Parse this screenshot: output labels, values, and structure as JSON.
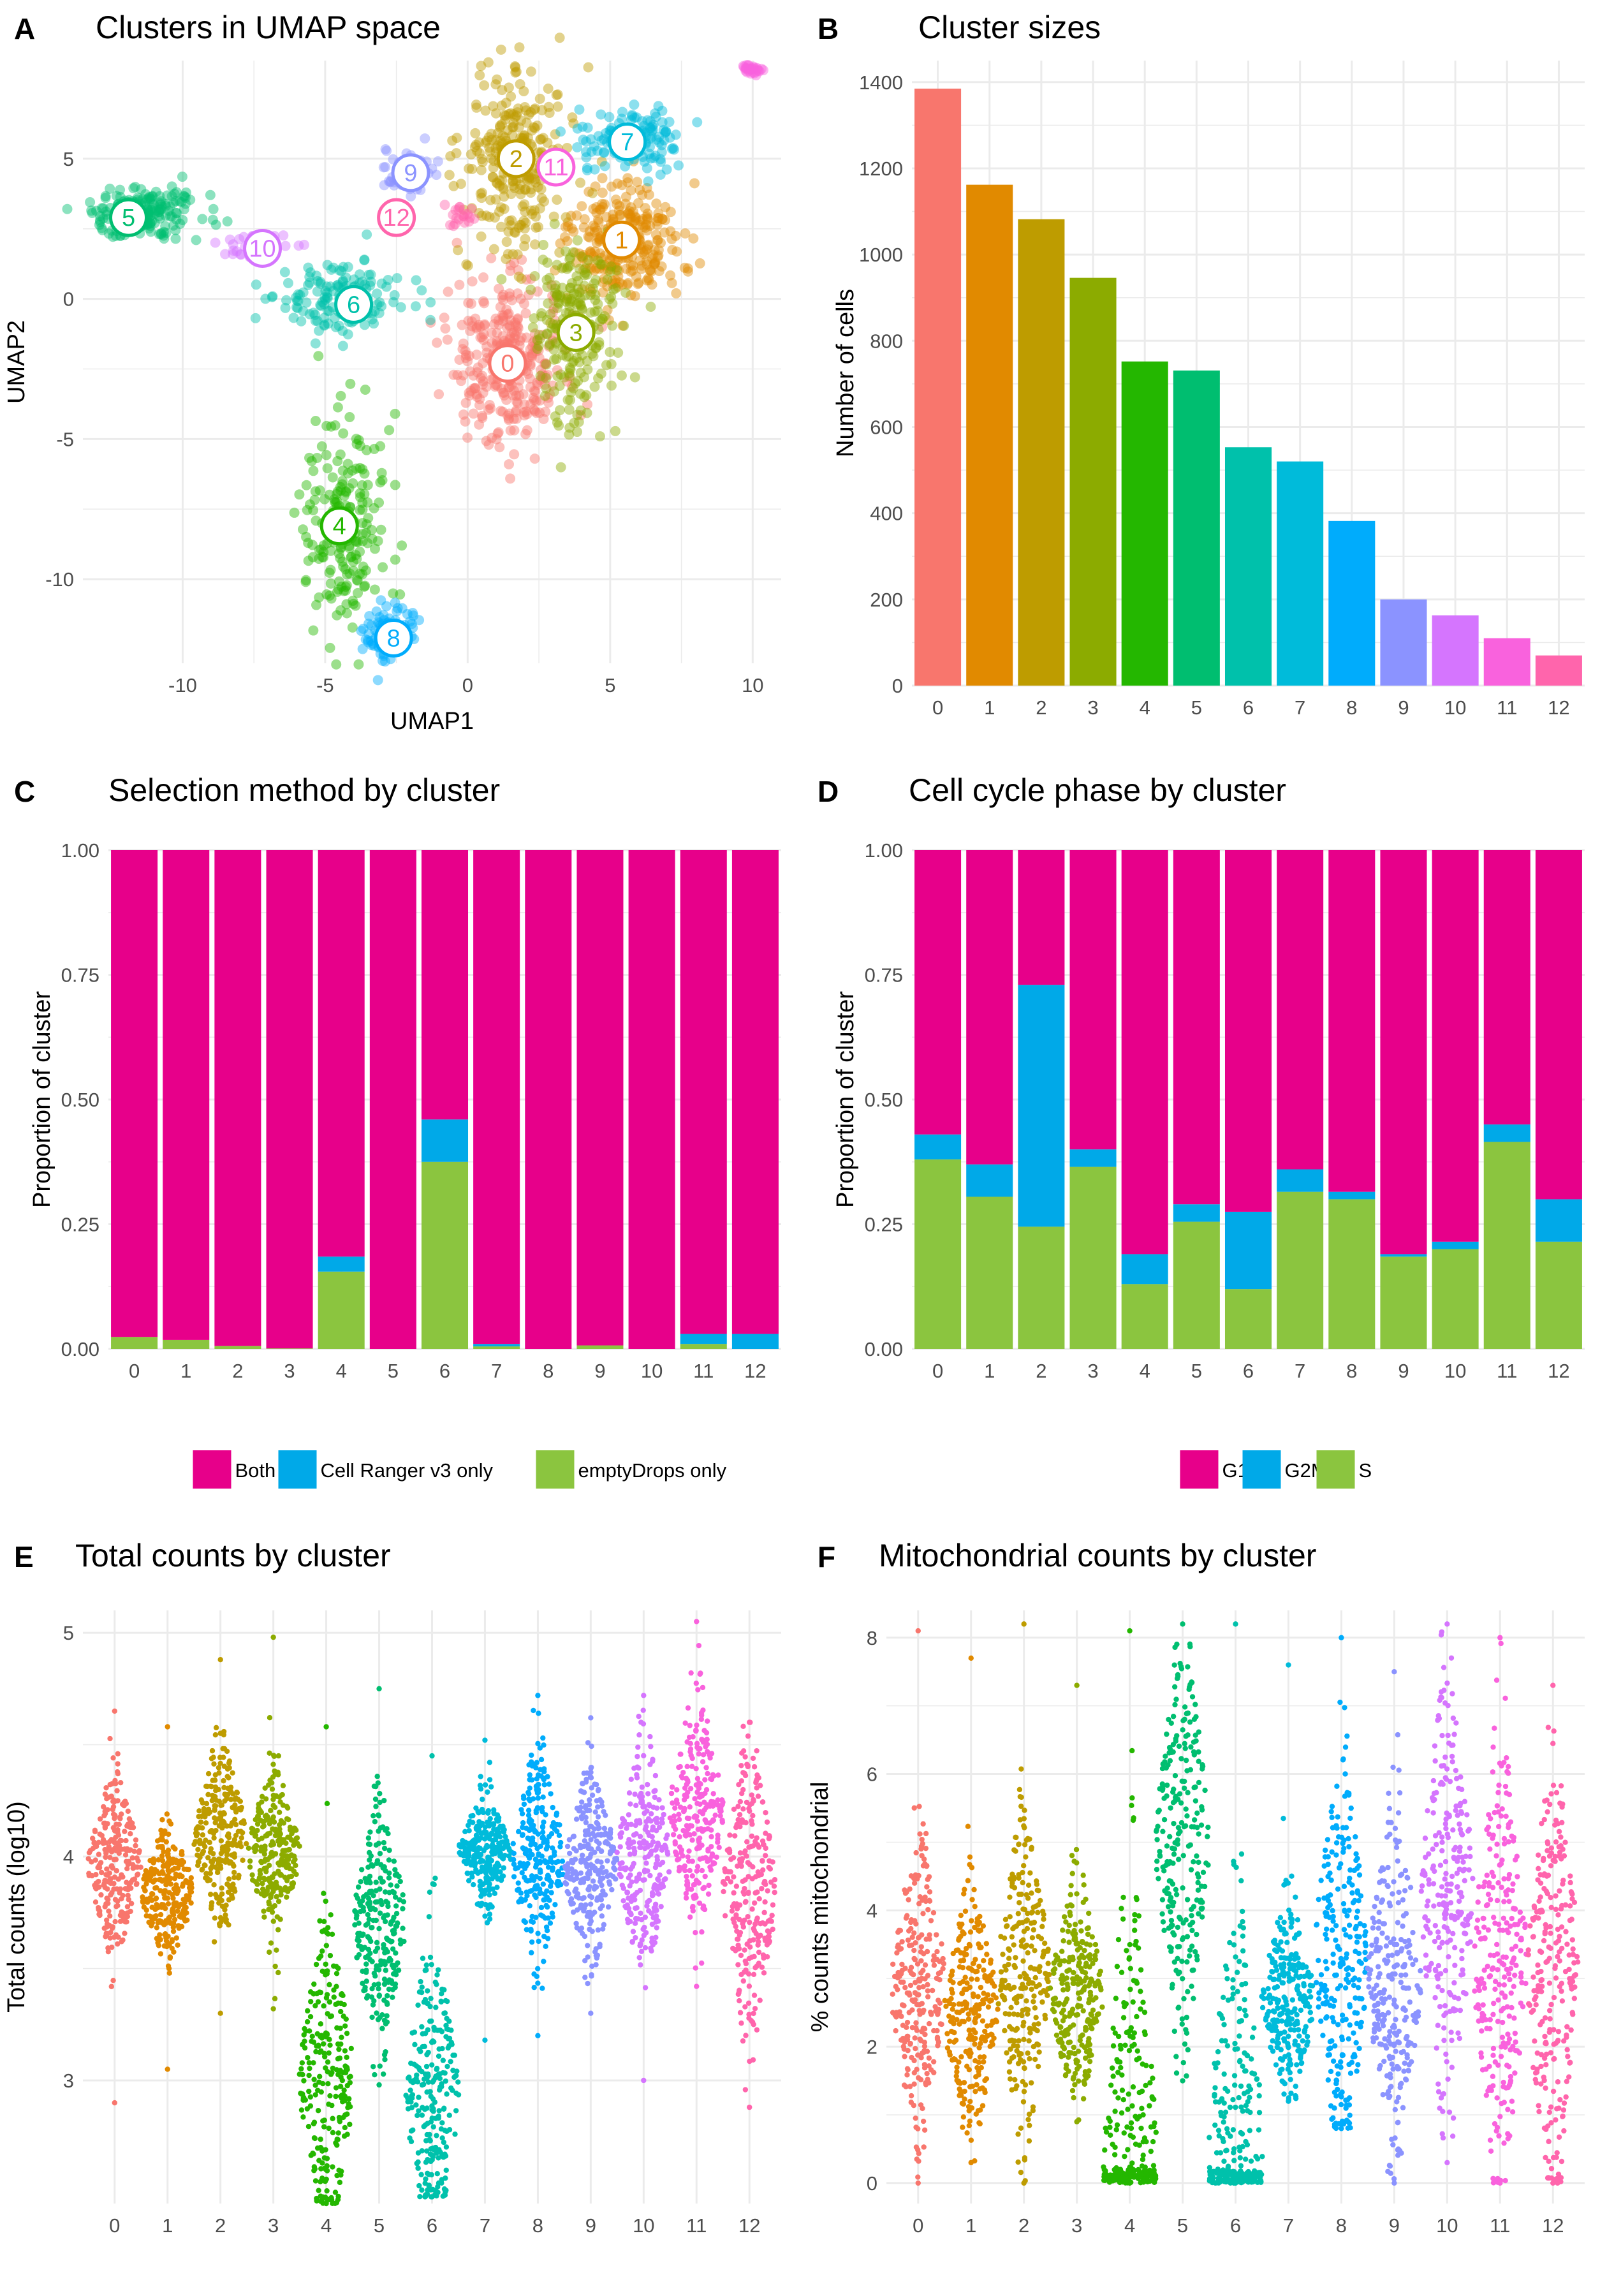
{
  "panels": {
    "A": {
      "label": "A",
      "title": "Clusters in UMAP space"
    },
    "B": {
      "label": "B",
      "title": "Cluster sizes"
    },
    "C": {
      "label": "C",
      "title": "Selection method by cluster"
    },
    "D": {
      "label": "D",
      "title": "Cell cycle phase by cluster"
    },
    "E": {
      "label": "E",
      "title": "Total counts by cluster"
    },
    "F": {
      "label": "F",
      "title": "Mitochondrial counts by cluster"
    }
  },
  "colors": {
    "clusters": [
      "#F8766D",
      "#E18A00",
      "#BE9C00",
      "#8CAB00",
      "#24B700",
      "#00BE70",
      "#00C1AB",
      "#00BBDA",
      "#00ACFC",
      "#8B93FF",
      "#D575FE",
      "#F962DD",
      "#FF65AC"
    ],
    "magenta": "#E7008A",
    "blue": "#00A9E8",
    "green": "#8BC53F",
    "grid": "#EBEBEB",
    "axis_text": "#4D4D4D"
  },
  "chart_data": [
    {
      "panel": "A",
      "type": "scatter",
      "title": "Clusters in UMAP space",
      "xlabel": "UMAP1",
      "ylabel": "UMAP2",
      "xlim": [
        -13.5,
        11
      ],
      "ylim": [
        -13,
        8.5
      ],
      "xticks": [
        -10,
        -5,
        0,
        5,
        10
      ],
      "yticks": [
        -10,
        -5,
        0,
        5
      ],
      "clusters": [
        {
          "id": "0",
          "center": [
            1.4,
            -2.3
          ],
          "spread": [
            1.0,
            1.4
          ],
          "n": 320
        },
        {
          "id": "1",
          "center": [
            5.5,
            2.0
          ],
          "spread": [
            1.0,
            1.1
          ],
          "n": 280
        },
        {
          "id": "2",
          "center": [
            1.7,
            5.0
          ],
          "spread": [
            0.9,
            1.6
          ],
          "n": 280
        },
        {
          "id": "3",
          "center": [
            3.7,
            -1.2
          ],
          "spread": [
            0.8,
            1.6
          ],
          "n": 230
        },
        {
          "id": "4",
          "center": [
            -4.3,
            -8.0
          ],
          "spread": [
            0.7,
            1.9
          ],
          "n": 200
        },
        {
          "id": "5",
          "center": [
            -11.4,
            3.1
          ],
          "spread": [
            1.0,
            0.5
          ],
          "n": 190
        },
        {
          "id": "6",
          "center": [
            -4.5,
            0.0
          ],
          "spread": [
            1.1,
            0.6
          ],
          "n": 150
        },
        {
          "id": "7",
          "center": [
            5.8,
            5.7
          ],
          "spread": [
            0.9,
            0.6
          ],
          "n": 140
        },
        {
          "id": "8",
          "center": [
            -2.7,
            -11.9
          ],
          "spread": [
            0.4,
            0.5
          ],
          "n": 100
        },
        {
          "id": "9",
          "center": [
            -2.2,
            4.4
          ],
          "spread": [
            0.5,
            0.4
          ],
          "n": 45
        },
        {
          "id": "10",
          "center": [
            -7.6,
            1.9
          ],
          "spread": [
            0.9,
            0.2
          ],
          "n": 40
        },
        {
          "id": "11",
          "center": [
            9.9,
            8.2
          ],
          "spread": [
            0.2,
            0.1
          ],
          "n": 30
        },
        {
          "id": "12",
          "center": [
            -0.3,
            3.0
          ],
          "spread": [
            0.3,
            0.2
          ],
          "n": 20
        }
      ],
      "labels": [
        {
          "id": "0",
          "pos": [
            1.4,
            -2.3
          ]
        },
        {
          "id": "1",
          "pos": [
            5.4,
            2.1
          ]
        },
        {
          "id": "2",
          "pos": [
            1.7,
            5.0
          ]
        },
        {
          "id": "3",
          "pos": [
            3.8,
            -1.2
          ]
        },
        {
          "id": "4",
          "pos": [
            -4.5,
            -8.1
          ]
        },
        {
          "id": "5",
          "pos": [
            -11.9,
            2.9
          ]
        },
        {
          "id": "6",
          "pos": [
            -4.0,
            -0.2
          ]
        },
        {
          "id": "7",
          "pos": [
            5.6,
            5.6
          ]
        },
        {
          "id": "8",
          "pos": [
            -2.6,
            -12.1
          ]
        },
        {
          "id": "9",
          "pos": [
            -2.0,
            4.5
          ]
        },
        {
          "id": "10",
          "pos": [
            -7.2,
            1.8
          ]
        },
        {
          "id": "11",
          "pos": [
            3.1,
            4.7
          ]
        },
        {
          "id": "12",
          "pos": [
            -2.5,
            2.9
          ]
        }
      ]
    },
    {
      "panel": "B",
      "type": "bar",
      "title": "Cluster sizes",
      "xlabel": "",
      "ylabel": "Number of cells",
      "categories": [
        "0",
        "1",
        "2",
        "3",
        "4",
        "5",
        "6",
        "7",
        "8",
        "9",
        "10",
        "11",
        "12"
      ],
      "values": [
        1385,
        1162,
        1082,
        946,
        752,
        731,
        553,
        520,
        382,
        200,
        163,
        110,
        70
      ],
      "ylim": [
        0,
        1450
      ],
      "yticks": [
        0,
        200,
        400,
        600,
        800,
        1000,
        1200,
        1400
      ]
    },
    {
      "panel": "C",
      "type": "bar",
      "stacked": true,
      "title": "Selection method by cluster",
      "xlabel": "",
      "ylabel": "Proportion of cluster",
      "categories": [
        "0",
        "1",
        "2",
        "3",
        "4",
        "5",
        "6",
        "7",
        "8",
        "9",
        "10",
        "11",
        "12"
      ],
      "series": [
        {
          "name": "Both",
          "color": "#E7008A",
          "values": [
            0.976,
            0.982,
            0.994,
            0.999,
            0.815,
            1.0,
            0.54,
            0.99,
            1.0,
            0.993,
            1.0,
            0.97,
            0.97
          ]
        },
        {
          "name": "Cell Ranger v3 only",
          "color": "#00A9E8",
          "values": [
            0.0,
            0.0,
            0.0,
            0.0,
            0.03,
            0.0,
            0.085,
            0.005,
            0.0,
            0.0,
            0.0,
            0.02,
            0.03
          ]
        },
        {
          "name": "emptyDrops only",
          "color": "#8BC53F",
          "values": [
            0.024,
            0.018,
            0.006,
            0.001,
            0.155,
            0.0,
            0.375,
            0.005,
            0.0,
            0.007,
            0.0,
            0.01,
            0.0
          ]
        }
      ],
      "ylim": [
        0,
        1
      ],
      "yticks": [
        "0.00",
        "0.25",
        "0.50",
        "0.75",
        "1.00"
      ],
      "legend_position": "bottom"
    },
    {
      "panel": "D",
      "type": "bar",
      "stacked": true,
      "title": "Cell cycle phase by cluster",
      "xlabel": "",
      "ylabel": "Proportion of cluster",
      "categories": [
        "0",
        "1",
        "2",
        "3",
        "4",
        "5",
        "6",
        "7",
        "8",
        "9",
        "10",
        "11",
        "12"
      ],
      "series": [
        {
          "name": "G1",
          "color": "#E7008A",
          "values": [
            0.57,
            0.63,
            0.27,
            0.6,
            0.81,
            0.71,
            0.725,
            0.64,
            0.685,
            0.81,
            0.785,
            0.55,
            0.7
          ]
        },
        {
          "name": "G2M",
          "color": "#00A9E8",
          "values": [
            0.05,
            0.065,
            0.485,
            0.035,
            0.06,
            0.035,
            0.155,
            0.045,
            0.015,
            0.005,
            0.015,
            0.035,
            0.085
          ]
        },
        {
          "name": "S",
          "color": "#8BC53F",
          "values": [
            0.38,
            0.305,
            0.245,
            0.365,
            0.13,
            0.255,
            0.12,
            0.315,
            0.3,
            0.185,
            0.2,
            0.415,
            0.215
          ]
        }
      ],
      "ylim": [
        0,
        1
      ],
      "yticks": [
        "0.00",
        "0.25",
        "0.50",
        "0.75",
        "1.00"
      ],
      "legend_position": "bottom"
    },
    {
      "panel": "E",
      "type": "scatter",
      "subtype": "beeswarm",
      "title": "Total counts by cluster",
      "xlabel": "",
      "ylabel": "Total counts (log10)",
      "categories": [
        "0",
        "1",
        "2",
        "3",
        "4",
        "5",
        "6",
        "7",
        "8",
        "9",
        "10",
        "11",
        "12"
      ],
      "series": [
        {
          "name": "0",
          "center": 3.96,
          "lo": 2.9,
          "hi": 4.65,
          "sd": 0.18
        },
        {
          "name": "1",
          "center": 3.84,
          "lo": 3.05,
          "hi": 4.58,
          "sd": 0.14
        },
        {
          "name": "2",
          "center": 4.08,
          "lo": 3.3,
          "hi": 4.88,
          "sd": 0.2
        },
        {
          "name": "3",
          "center": 4.02,
          "lo": 3.32,
          "hi": 4.98,
          "sd": 0.17
        },
        {
          "name": "4",
          "center": 3.0,
          "lo": 2.45,
          "hi": 4.58,
          "sd": 0.35
        },
        {
          "name": "5",
          "center": 3.7,
          "lo": 2.98,
          "hi": 4.75,
          "sd": 0.25
        },
        {
          "name": "6",
          "center": 2.95,
          "lo": 2.48,
          "hi": 4.45,
          "sd": 0.35
        },
        {
          "name": "7",
          "center": 4.02,
          "lo": 3.18,
          "hi": 4.52,
          "sd": 0.12
        },
        {
          "name": "8",
          "center": 4.0,
          "lo": 3.2,
          "hi": 4.72,
          "sd": 0.22
        },
        {
          "name": "9",
          "center": 3.95,
          "lo": 3.3,
          "hi": 4.62,
          "sd": 0.2
        },
        {
          "name": "10",
          "center": 4.0,
          "lo": 3.0,
          "hi": 4.72,
          "sd": 0.25
        },
        {
          "name": "11",
          "center": 4.2,
          "lo": 3.42,
          "hi": 5.05,
          "sd": 0.25
        },
        {
          "name": "12",
          "center": 3.85,
          "lo": 2.88,
          "hi": 4.6,
          "sd": 0.3
        }
      ],
      "ylim": [
        2.45,
        5.1
      ],
      "yticks": [
        3,
        4,
        5
      ]
    },
    {
      "panel": "F",
      "type": "scatter",
      "subtype": "beeswarm",
      "title": "Mitochondrial counts by cluster",
      "xlabel": "",
      "ylabel": "% counts mitochondrial",
      "categories": [
        "0",
        "1",
        "2",
        "3",
        "4",
        "5",
        "6",
        "7",
        "8",
        "9",
        "10",
        "11",
        "12"
      ],
      "series": [
        {
          "name": "0",
          "center": 2.9,
          "lo": 0.0,
          "hi": 8.1,
          "sd": 1.1
        },
        {
          "name": "1",
          "center": 2.5,
          "lo": 0.3,
          "hi": 7.7,
          "sd": 0.9
        },
        {
          "name": "2",
          "center": 3.0,
          "lo": 0.0,
          "hi": 8.2,
          "sd": 1.1
        },
        {
          "name": "3",
          "center": 2.8,
          "lo": 0.9,
          "hi": 7.3,
          "sd": 0.8
        },
        {
          "name": "4",
          "center": 0.4,
          "lo": 0.0,
          "hi": 8.1,
          "sd": 2.0
        },
        {
          "name": "5",
          "center": 5.0,
          "lo": 1.5,
          "hi": 8.2,
          "sd": 1.4
        },
        {
          "name": "6",
          "center": 0.5,
          "lo": 0.0,
          "hi": 8.2,
          "sd": 1.8
        },
        {
          "name": "7",
          "center": 2.7,
          "lo": 1.2,
          "hi": 7.6,
          "sd": 0.7
        },
        {
          "name": "8",
          "center": 3.3,
          "lo": 0.8,
          "hi": 8.0,
          "sd": 1.4
        },
        {
          "name": "9",
          "center": 3.0,
          "lo": 0.0,
          "hi": 7.5,
          "sd": 1.2
        },
        {
          "name": "10",
          "center": 4.2,
          "lo": 0.3,
          "hi": 8.2,
          "sd": 1.5
        },
        {
          "name": "11",
          "center": 3.2,
          "lo": 0.0,
          "hi": 8.0,
          "sd": 1.5
        },
        {
          "name": "12",
          "center": 3.0,
          "lo": 0.0,
          "hi": 7.3,
          "sd": 1.5
        }
      ],
      "ylim": [
        -0.3,
        8.4
      ],
      "yticks": [
        0,
        2,
        4,
        6,
        8
      ]
    }
  ]
}
